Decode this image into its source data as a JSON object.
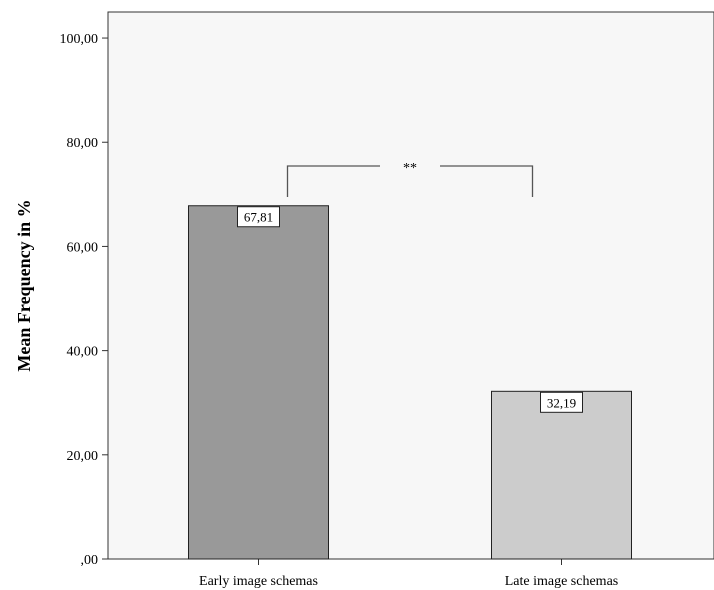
{
  "chart_data": {
    "type": "bar",
    "categories": [
      "Early image schemas",
      "Late image schemas"
    ],
    "values": [
      67.81,
      32.19
    ],
    "data_labels": [
      "67,81",
      "32,19"
    ],
    "ylabel": "Mean Frequency in %",
    "xlabel": "",
    "ylim": [
      0,
      105
    ],
    "yticks": [
      0,
      20,
      40,
      60,
      80,
      100
    ],
    "ytick_labels": [
      ",00",
      "20,00",
      "40,00",
      "60,00",
      "80,00",
      "100,00"
    ],
    "grid": false,
    "significance": {
      "between": [
        0,
        1
      ],
      "label": "**"
    },
    "colors": {
      "plot_background": "#f7f7f7",
      "bars": [
        "#999999",
        "#cccccc"
      ],
      "axis": "#333333"
    }
  }
}
